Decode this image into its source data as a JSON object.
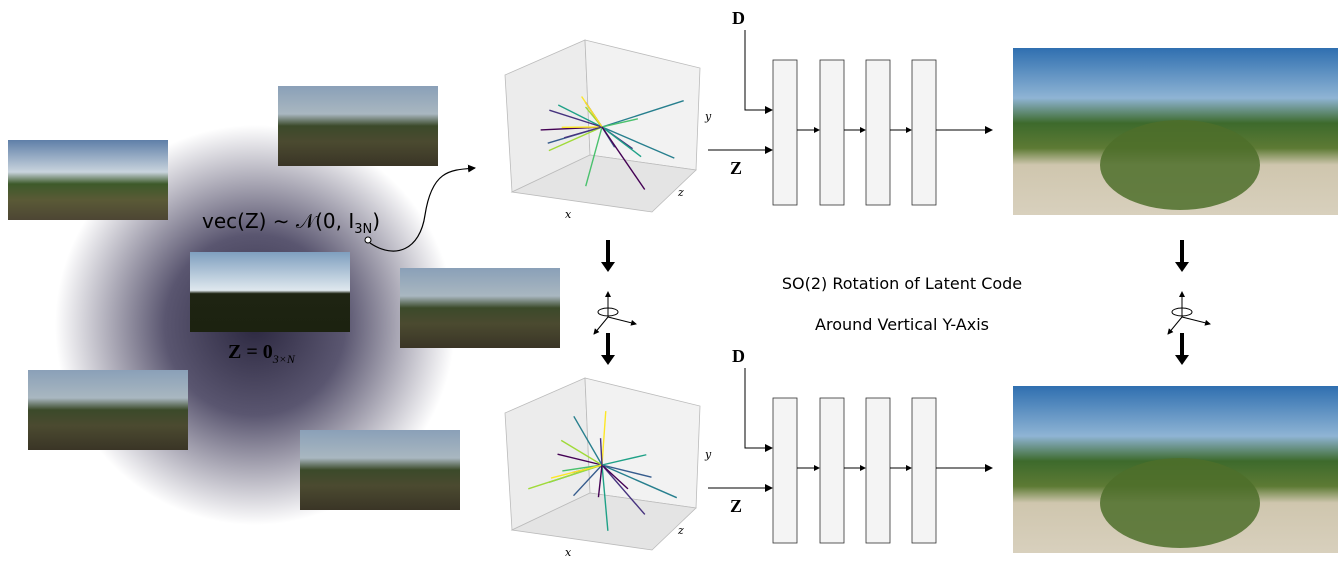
{
  "latent_space": {
    "formula_main": "vec(Z) ∼ 𝒩(0, I",
    "formula_sub": "3N",
    "formula_end": ")",
    "zero_main": "Z = 0",
    "zero_sub": "3×N"
  },
  "panels": [
    {
      "input_d": "D",
      "input_z": "Z",
      "axis_x": "x",
      "axis_y": "y",
      "axis_z": "z"
    },
    {
      "input_d": "D",
      "input_z": "Z",
      "axis_x": "x",
      "axis_y": "y",
      "axis_z": "z"
    }
  ],
  "rotation": {
    "line1": "SO(2) Rotation of Latent Code",
    "line2": "Around Vertical Y-Axis"
  }
}
